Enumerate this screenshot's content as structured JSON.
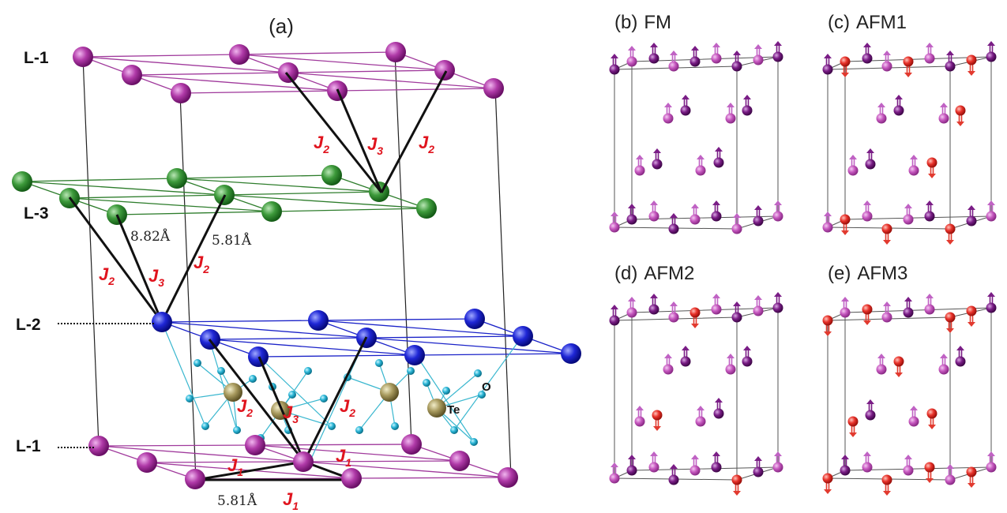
{
  "panel_a": {
    "label": "(a)",
    "layers": [
      "L-1",
      "L-3",
      "L-2",
      "L-1"
    ],
    "exchange_labels": [
      {
        "letter": "J",
        "index": "2"
      },
      {
        "letter": "J",
        "index": "3"
      },
      {
        "letter": "J",
        "index": "2"
      },
      {
        "letter": "J",
        "index": "2"
      },
      {
        "letter": "J",
        "index": "3"
      },
      {
        "letter": "J",
        "index": "2"
      },
      {
        "letter": "J",
        "index": "2"
      },
      {
        "letter": "J",
        "index": "3"
      },
      {
        "letter": "J",
        "index": "2"
      },
      {
        "letter": "J",
        "index": "1"
      },
      {
        "letter": "J",
        "index": "1"
      },
      {
        "letter": "J",
        "index": "1"
      }
    ],
    "distances": [
      "8.82Å",
      "5.81Å",
      "5.81Å"
    ],
    "atoms": [
      "Te",
      "O"
    ]
  },
  "spin_panels": [
    {
      "label": "(b)",
      "name": "FM"
    },
    {
      "label": "(c)",
      "name": "AFM1"
    },
    {
      "label": "(d)",
      "name": "AFM2"
    },
    {
      "label": "(e)",
      "name": "AFM3"
    }
  ]
}
